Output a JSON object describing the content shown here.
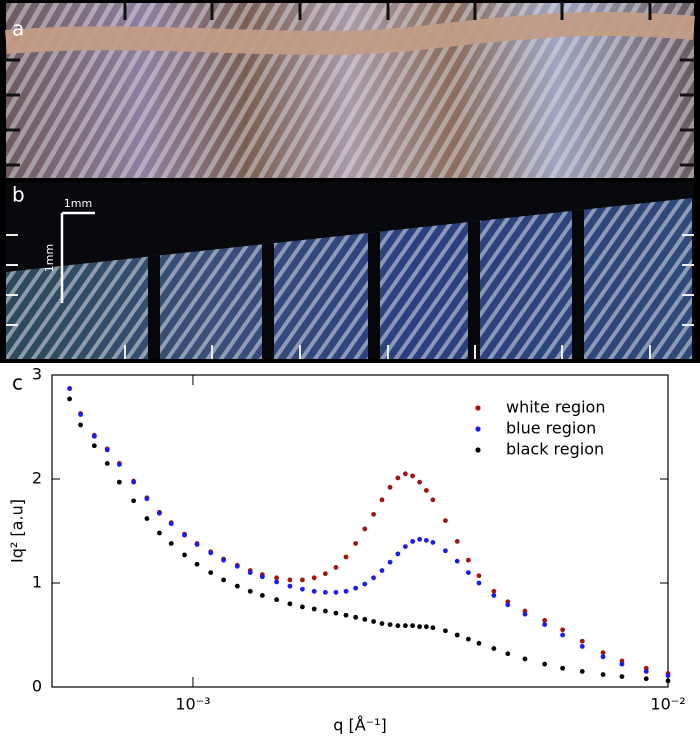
{
  "figure": {
    "panel_labels": [
      "a",
      "b",
      "c"
    ],
    "scale_labels": [
      "1mm",
      "1mm"
    ]
  },
  "chart_data": {
    "type": "scatter",
    "xlabel": "q [Å⁻¹]",
    "ylabel": "Iq² [a.u]",
    "xscale": "log",
    "xlim": [
      0.000505,
      0.01
    ],
    "ylim": [
      0,
      3
    ],
    "xticks": [
      {
        "value": 0.001,
        "label": "10⁻³"
      },
      {
        "value": 0.01,
        "label": "10⁻²"
      }
    ],
    "yticks": [
      0,
      1,
      2,
      3
    ],
    "legend": "upper right",
    "x": [
      0.00055,
      0.00058,
      0.00062,
      0.00066,
      0.0007,
      0.00075,
      0.0008,
      0.00085,
      0.0009,
      0.00096,
      0.00102,
      0.00109,
      0.00116,
      0.00124,
      0.00132,
      0.0014,
      0.0015,
      0.0016,
      0.0017,
      0.0018,
      0.0019,
      0.002,
      0.0021,
      0.0022,
      0.0023,
      0.0024,
      0.0025,
      0.0026,
      0.0027,
      0.0028,
      0.0029,
      0.003,
      0.0031,
      0.0032,
      0.0034,
      0.0036,
      0.0038,
      0.004,
      0.0043,
      0.0046,
      0.005,
      0.0055,
      0.006,
      0.0066,
      0.0073,
      0.008,
      0.009,
      0.01
    ],
    "series": [
      {
        "name": "white region",
        "color": "#a01414",
        "values": [
          2.87,
          2.63,
          2.42,
          2.29,
          2.15,
          1.98,
          1.82,
          1.68,
          1.58,
          1.47,
          1.38,
          1.3,
          1.23,
          1.17,
          1.12,
          1.08,
          1.05,
          1.03,
          1.03,
          1.05,
          1.09,
          1.15,
          1.25,
          1.38,
          1.52,
          1.66,
          1.8,
          1.92,
          2.01,
          2.05,
          2.03,
          1.97,
          1.89,
          1.8,
          1.6,
          1.4,
          1.22,
          1.07,
          0.92,
          0.82,
          0.73,
          0.64,
          0.55,
          0.44,
          0.33,
          0.25,
          0.18,
          0.13
        ]
      },
      {
        "name": "blue region",
        "color": "#1c1cf0",
        "values": [
          2.87,
          2.62,
          2.41,
          2.28,
          2.14,
          1.97,
          1.81,
          1.67,
          1.57,
          1.46,
          1.37,
          1.29,
          1.22,
          1.16,
          1.1,
          1.06,
          1.01,
          0.97,
          0.94,
          0.92,
          0.91,
          0.91,
          0.92,
          0.95,
          0.99,
          1.05,
          1.12,
          1.2,
          1.28,
          1.35,
          1.4,
          1.42,
          1.41,
          1.39,
          1.31,
          1.21,
          1.1,
          1.0,
          0.88,
          0.79,
          0.7,
          0.6,
          0.5,
          0.39,
          0.29,
          0.22,
          0.15,
          0.11
        ]
      },
      {
        "name": "black region",
        "color": "#000000",
        "values": [
          2.77,
          2.52,
          2.32,
          2.15,
          1.97,
          1.79,
          1.62,
          1.48,
          1.38,
          1.27,
          1.18,
          1.1,
          1.03,
          0.97,
          0.92,
          0.88,
          0.84,
          0.8,
          0.77,
          0.75,
          0.73,
          0.71,
          0.69,
          0.67,
          0.65,
          0.63,
          0.61,
          0.6,
          0.59,
          0.59,
          0.59,
          0.58,
          0.58,
          0.57,
          0.54,
          0.5,
          0.46,
          0.42,
          0.37,
          0.32,
          0.27,
          0.22,
          0.18,
          0.15,
          0.12,
          0.1,
          0.08,
          0.06
        ]
      }
    ]
  }
}
